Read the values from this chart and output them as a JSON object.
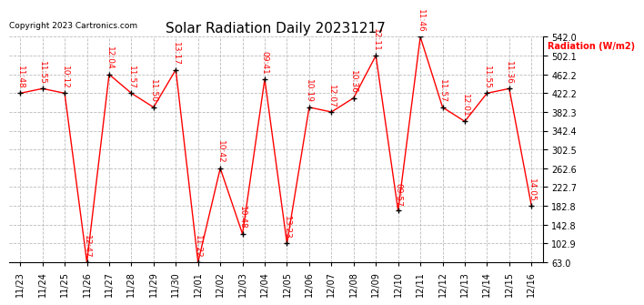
{
  "title": "Solar Radiation Daily 20231217",
  "copyright": "Copyright 2023 Cartronics.com",
  "ylabel": "Radiation (W/m2)",
  "dates": [
    "11/23",
    "11/24",
    "11/25",
    "11/26",
    "11/27",
    "11/28",
    "11/29",
    "11/30",
    "12/01",
    "12/02",
    "12/03",
    "12/04",
    "12/05",
    "12/06",
    "12/07",
    "12/08",
    "12/09",
    "12/10",
    "12/11",
    "12/12",
    "12/13",
    "12/14",
    "12/15",
    "12/16"
  ],
  "values": [
    422.2,
    432.0,
    422.2,
    63.0,
    462.2,
    422.2,
    392.3,
    472.2,
    63.0,
    262.6,
    123.0,
    452.2,
    102.9,
    392.3,
    382.3,
    412.2,
    502.1,
    172.8,
    542.0,
    392.3,
    362.3,
    422.2,
    432.0,
    182.8
  ],
  "time_labels": [
    "11:48",
    "11:55",
    "10:12",
    "12:47",
    "12:04",
    "11:57",
    "11:50",
    "13:17",
    "11:22",
    "10:42",
    "10:48",
    "09:41",
    "13:23",
    "10:19",
    "12:07",
    "10:36",
    "12:11",
    "09:57",
    "11:46",
    "11:57",
    "12:01",
    "11:55",
    "11:36",
    "14:05"
  ],
  "ylim_min": 63.0,
  "ylim_max": 542.0,
  "yticks": [
    63.0,
    102.9,
    142.8,
    182.8,
    222.7,
    262.6,
    302.5,
    342.4,
    382.3,
    422.2,
    462.2,
    502.1,
    542.0
  ],
  "line_color": "#ff0000",
  "marker_color": "#000000",
  "grid_color": "#bbbbbb",
  "bg_color": "#ffffff",
  "title_fontsize": 11,
  "label_fontsize": 6.5,
  "tick_fontsize": 7,
  "copyright_fontsize": 6.5
}
